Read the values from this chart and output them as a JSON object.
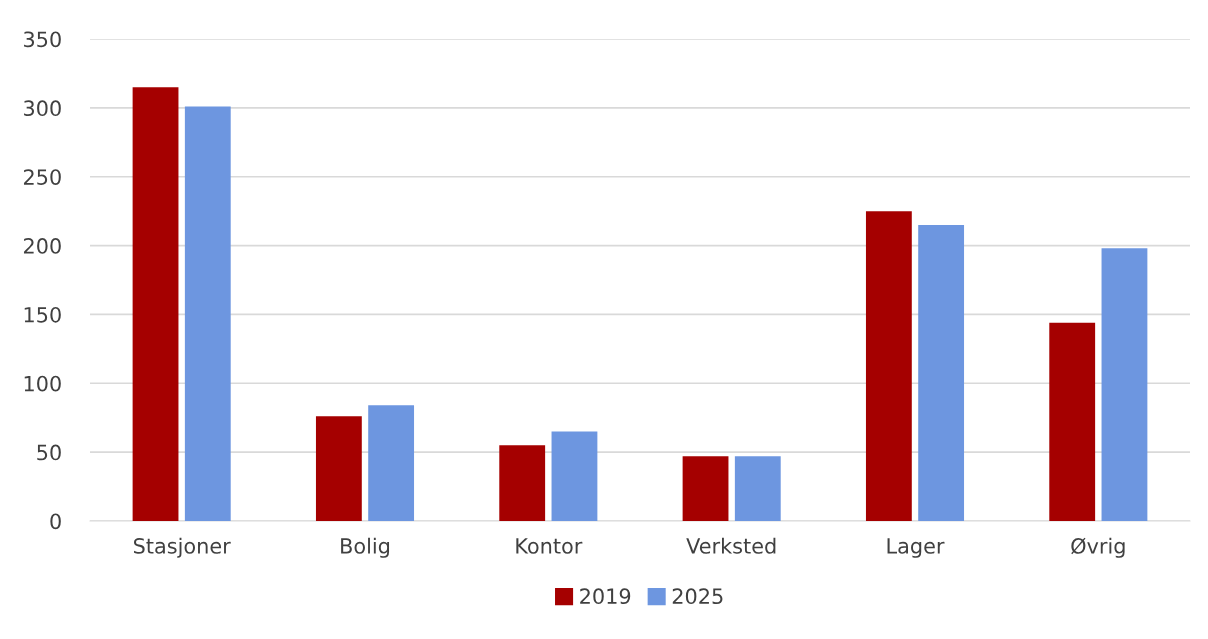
{
  "chart_data": {
    "type": "bar",
    "categories": [
      "Stasjoner",
      "Bolig",
      "Kontor",
      "Verksted",
      "Lager",
      "Øvrig"
    ],
    "series": [
      {
        "name": "2019",
        "color": "#a50000",
        "values": [
          315,
          76,
          55,
          47,
          225,
          144
        ]
      },
      {
        "name": "2025",
        "color": "#6d96e0",
        "values": [
          301,
          84,
          65,
          47,
          215,
          198
        ]
      }
    ],
    "ylim": [
      0,
      350
    ],
    "yticks": [
      0,
      50,
      100,
      150,
      200,
      250,
      300,
      350
    ],
    "grid": "y",
    "legend": "bottom"
  }
}
